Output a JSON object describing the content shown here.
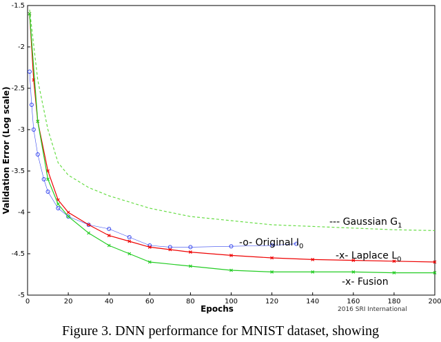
{
  "chart_data": {
    "type": "line",
    "x_label": "Epochs",
    "y_label": "Validation Error (Log scale)",
    "watermark": "2016 SRI International",
    "caption": "Figure 3. DNN performance for MNIST dataset, showing",
    "xlim": [
      0,
      200
    ],
    "xticks": [
      0,
      20,
      40,
      60,
      80,
      100,
      120,
      140,
      160,
      180,
      200
    ],
    "ylim": [
      -5,
      -1.5
    ],
    "yticks": [
      -5,
      -4.5,
      -4,
      -3.5,
      -3,
      -2.5,
      -2,
      -1.5
    ],
    "series": [
      {
        "name": "--- Gaussian G",
        "subscript": "1",
        "color": "#66dd44",
        "x": [
          1,
          5,
          10,
          15,
          20,
          30,
          40,
          60,
          80,
          100,
          120,
          140,
          160,
          180,
          200
        ],
        "values": [
          -1.55,
          -2.4,
          -3.0,
          -3.4,
          -3.55,
          -3.7,
          -3.8,
          -3.95,
          -4.05,
          -4.1,
          -4.15,
          -4.17,
          -4.19,
          -4.21,
          -4.22
        ]
      },
      {
        "name": "-o- Original I",
        "subscript": "0",
        "color": "#3344ee",
        "x": [
          1,
          2,
          3,
          5,
          8,
          10,
          15,
          20,
          30,
          40,
          50,
          60,
          70,
          80,
          100,
          120,
          132
        ],
        "values": [
          -2.3,
          -2.7,
          -3.0,
          -3.3,
          -3.6,
          -3.75,
          -3.95,
          -4.05,
          -4.15,
          -4.2,
          -4.3,
          -4.4,
          -4.42,
          -4.42,
          -4.41,
          -4.4,
          -4.38
        ]
      },
      {
        "name": "-x- Laplace L",
        "subscript": "0",
        "color": "#ee0000",
        "x": [
          1,
          3,
          5,
          10,
          15,
          20,
          30,
          40,
          50,
          60,
          70,
          80,
          100,
          120,
          140,
          160,
          180,
          200
        ],
        "values": [
          -1.6,
          -2.4,
          -2.9,
          -3.5,
          -3.85,
          -4.0,
          -4.15,
          -4.28,
          -4.35,
          -4.42,
          -4.45,
          -4.48,
          -4.52,
          -4.55,
          -4.57,
          -4.58,
          -4.59,
          -4.6
        ]
      },
      {
        "name": "-x- Fusion",
        "color": "#22cc22",
        "x": [
          1,
          5,
          10,
          15,
          20,
          30,
          40,
          50,
          60,
          80,
          100,
          120,
          140,
          160,
          180,
          200
        ],
        "values": [
          -1.6,
          -2.9,
          -3.6,
          -3.9,
          -4.05,
          -4.25,
          -4.4,
          -4.5,
          -4.6,
          -4.65,
          -4.7,
          -4.72,
          -4.72,
          -4.72,
          -4.73,
          -4.73
        ]
      }
    ]
  }
}
